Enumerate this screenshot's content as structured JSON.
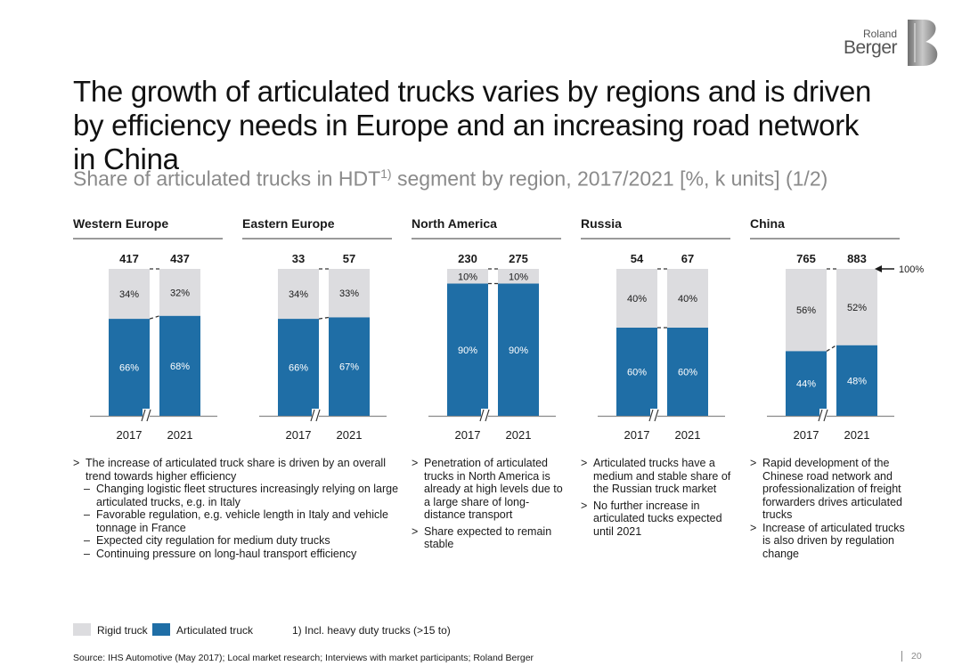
{
  "brand": {
    "line1": "Roland",
    "line2": "Berger"
  },
  "title": "The growth of articulated trucks varies by regions and is driven by efficiency needs in Europe and an increasing road network in China",
  "subtitle": {
    "text": "Share of articulated trucks in HDT",
    "sup": "1)",
    "rest": " segment by region, 2017/2021 [%, k units] (1/2)"
  },
  "colors": {
    "rigid": "#dcdcdf",
    "articulated": "#1f6ea6",
    "header_rule": "#9a9a9a"
  },
  "chart_data": [
    {
      "type": "bar",
      "region": "Western Europe",
      "categories": [
        "2017",
        "2021"
      ],
      "totals": [
        417,
        437
      ],
      "series": [
        {
          "name": "Articulated truck",
          "values": [
            66,
            68
          ]
        },
        {
          "name": "Rigid truck",
          "values": [
            34,
            32
          ]
        }
      ]
    },
    {
      "type": "bar",
      "region": "Eastern Europe",
      "categories": [
        "2017",
        "2021"
      ],
      "totals": [
        33,
        57
      ],
      "series": [
        {
          "name": "Articulated truck",
          "values": [
            66,
            67
          ]
        },
        {
          "name": "Rigid truck",
          "values": [
            34,
            33
          ]
        }
      ]
    },
    {
      "type": "bar",
      "region": "North America",
      "categories": [
        "2017",
        "2021"
      ],
      "totals": [
        230,
        275
      ],
      "series": [
        {
          "name": "Articulated truck",
          "values": [
            90,
            90
          ]
        },
        {
          "name": "Rigid truck",
          "values": [
            10,
            10
          ]
        }
      ]
    },
    {
      "type": "bar",
      "region": "Russia",
      "categories": [
        "2017",
        "2021"
      ],
      "totals": [
        54,
        67
      ],
      "series": [
        {
          "name": "Articulated truck",
          "values": [
            60,
            60
          ]
        },
        {
          "name": "Rigid truck",
          "values": [
            40,
            40
          ]
        }
      ]
    },
    {
      "type": "bar",
      "region": "China",
      "categories": [
        "2017",
        "2021"
      ],
      "totals": [
        765,
        883
      ],
      "series": [
        {
          "name": "Articulated truck",
          "values": [
            44,
            48
          ]
        },
        {
          "name": "Rigid truck",
          "values": [
            56,
            52
          ]
        }
      ]
    }
  ],
  "hundred_pct_label": "100%",
  "notes": {
    "western_eastern": [
      {
        "text": "The increase of articulated truck share is driven by an overall trend towards higher efficiency",
        "subs": [
          "Changing logistic fleet structures increasingly relying on large articulated trucks, e.g. in Italy",
          "Favorable regulation, e.g. vehicle length in Italy and vehicle tonnage in France",
          "Expected city regulation for medium duty trucks",
          "Continuing pressure on long-haul transport efficiency"
        ]
      }
    ],
    "north_america": [
      "Penetration of articulated trucks in North America is already at high levels due to a large share of long-distance transport",
      "Share expected to remain stable"
    ],
    "russia": [
      "Articulated trucks have a medium and stable share of the Russian truck market",
      "No further increase in articulated tucks expected until 2021"
    ],
    "china": [
      "Rapid development of the Chinese road network and professionalization of freight forwarders drives articulated trucks",
      "Increase of articulated trucks is also driven by regulation change"
    ]
  },
  "bullet_symbol": ">",
  "dash_symbol": "–",
  "legend": {
    "rigid": "Rigid truck",
    "articulated": "Articulated truck"
  },
  "footnote": "1) Incl. heavy duty trucks (>15 to)",
  "source": "Source: IHS Automotive (May 2017); Local market research; Interviews with market participants; Roland Berger",
  "page_number": "20"
}
